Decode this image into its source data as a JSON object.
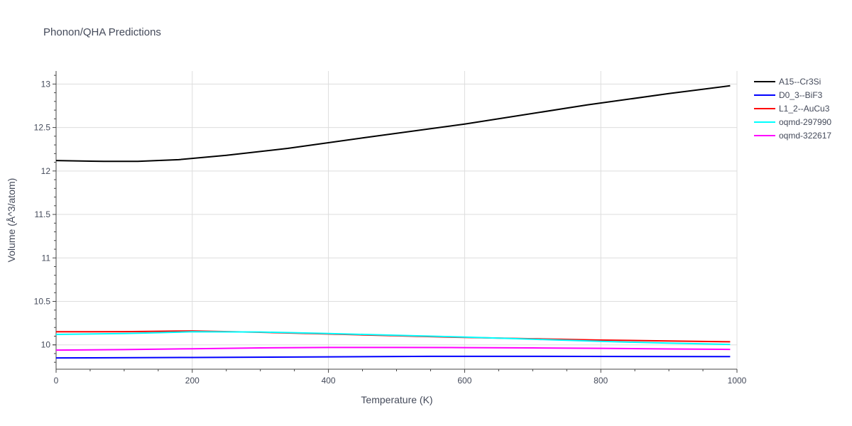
{
  "chart_data": {
    "type": "line",
    "title": "Phonon/QHA Predictions",
    "xlabel": "Temperature (K)",
    "ylabel": "Volume (Å^3/atom)",
    "xlim": [
      0,
      1000
    ],
    "ylim": [
      9.72,
      13.15
    ],
    "xticks": [
      0,
      200,
      400,
      600,
      800,
      1000
    ],
    "xtick_labels": [
      "0",
      "200",
      "400",
      "600",
      "800",
      "1000"
    ],
    "yticks": [
      10,
      10.5,
      11,
      11.5,
      12,
      12.5,
      13
    ],
    "ytick_labels": [
      "10",
      "10.5",
      "11",
      "11.5",
      "12",
      "12.5",
      "13"
    ],
    "grid": true,
    "legend_position": "top-right, outside plot",
    "series": [
      {
        "name": "A15--Cr3Si",
        "color": "#000000",
        "x": [
          0,
          70,
          120,
          180,
          250,
          340,
          450,
          600,
          780,
          900,
          990
        ],
        "y": [
          12.12,
          12.11,
          12.11,
          12.13,
          12.18,
          12.26,
          12.38,
          12.54,
          12.76,
          12.89,
          12.98
        ]
      },
      {
        "name": "D0_3--BiF3",
        "color": "#0000ff",
        "x": [
          0,
          200,
          400,
          550,
          700,
          850,
          990
        ],
        "y": [
          9.85,
          9.855,
          9.862,
          9.868,
          9.868,
          9.866,
          9.865
        ]
      },
      {
        "name": "L1_2--AuCu3",
        "color": "#ff0000",
        "x": [
          0,
          100,
          200,
          300,
          400,
          500,
          600,
          700,
          800,
          900,
          990
        ],
        "y": [
          10.15,
          10.152,
          10.16,
          10.145,
          10.125,
          10.105,
          10.085,
          10.07,
          10.055,
          10.045,
          10.035
        ]
      },
      {
        "name": "oqmd-297990",
        "color": "#00ffff",
        "x": [
          0,
          100,
          200,
          300,
          400,
          500,
          600,
          700,
          800,
          900,
          990
        ],
        "y": [
          10.12,
          10.13,
          10.15,
          10.148,
          10.13,
          10.11,
          10.09,
          10.065,
          10.04,
          10.02,
          10.005
        ]
      },
      {
        "name": "oqmd-322617",
        "color": "#ff00ff",
        "x": [
          0,
          100,
          200,
          300,
          400,
          500,
          600,
          700,
          800,
          900,
          990
        ],
        "y": [
          9.94,
          9.945,
          9.955,
          9.965,
          9.97,
          9.97,
          9.968,
          9.965,
          9.96,
          9.953,
          9.948
        ]
      }
    ]
  }
}
